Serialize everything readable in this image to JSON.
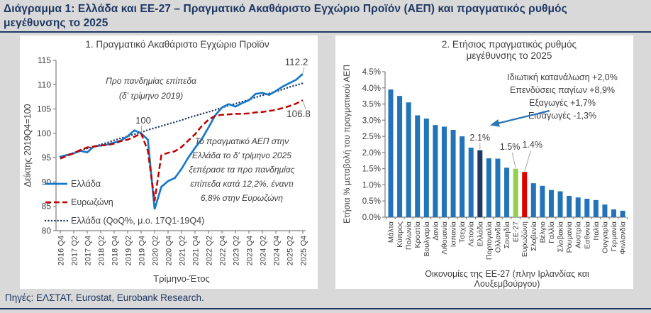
{
  "page": {
    "title_lines": [
      "Διάγραμμα 1: Ελλάδα και ΕΕ-27 – Πραγματικό Ακαθάριστο Εγχώριο Προϊόν (ΑΕΠ) και πραγματικός ρυθμός",
      "μεγέθυνσης το 2025"
    ],
    "sources": "Πηγές: ΕΛΣΤΑΤ, Eurostat, Eurobank Research."
  },
  "colors": {
    "navy": "#1F3864",
    "page_bg": "#D9D9D9",
    "panel_bg": "#FFFFFF",
    "text_dark": "#3F3F3F",
    "axis_gray": "#7F7F7F",
    "leader_gray": "#A6A6A6",
    "line_blue": "#1878C8",
    "line_red": "#C00000",
    "trend_navy": "#1F3864",
    "bar_blue": "#2273B8",
    "bar_navy": "#1F3864",
    "bar_green": "#92D050",
    "bar_red": "#DF0000",
    "arrow_blue": "#2E75B6"
  },
  "chart_data": [
    {
      "type": "line",
      "title": "1. Πραγματικό Ακαθάριστο Εγχώριο Προϊόν",
      "xlabel": "Τρίμηνο-Έτος",
      "ylabel": "Δείκτης 2019Q4=100",
      "ylim": [
        80,
        115
      ],
      "ytick_step": 5,
      "grid": false,
      "legend_position": "inside-bottom-left",
      "x_ticks": [
        "2016 Q4",
        "2017 Q2",
        "2017 Q4",
        "2018 Q2",
        "2018 Q4",
        "2019 Q2",
        "2019 Q4",
        "2020 Q2",
        "2020 Q4",
        "2021 Q2",
        "2021 Q4",
        "2022 Q2",
        "2022 Q4",
        "2023 Q2",
        "2023 Q4",
        "2024 Q2",
        "2024 Q4",
        "2025 Q2",
        "2025 Q4"
      ],
      "series": [
        {
          "name": "Ελλάδα",
          "style": "solid",
          "color_key": "line_blue",
          "values": [
            95.2,
            95.5,
            95.9,
            96.4,
            96.1,
            97.3,
            97.5,
            97.7,
            98.1,
            98.5,
            99.4,
            100.6,
            100.0,
            98.7,
            84.4,
            89.0,
            90.2,
            90.8,
            92.7,
            95.0,
            97.0,
            98.8,
            101.2,
            103.7,
            105.3,
            106.0,
            105.5,
            106.2,
            106.8,
            108.1,
            108.3,
            107.9,
            108.7,
            109.6,
            110.3,
            111.0,
            112.2
          ]
        },
        {
          "name": "Ευρωζώνη",
          "style": "dashed",
          "color_key": "line_red",
          "values": [
            94.8,
            95.4,
            95.9,
            96.6,
            97.1,
            97.3,
            97.5,
            97.6,
            97.9,
            98.4,
            98.7,
            99.3,
            100.0,
            96.4,
            86.1,
            95.5,
            96.0,
            96.3,
            97.2,
            98.5,
            99.8,
            101.5,
            102.8,
            103.6,
            103.8,
            103.9,
            104.0,
            104.0,
            104.1,
            104.3,
            104.4,
            104.6,
            104.8,
            105.2,
            105.6,
            106.1,
            106.8
          ]
        },
        {
          "name": "Ελλάδα (QoQ%, μ.ο. 17Q1-19Q4)",
          "style": "dotted",
          "color_key": "trend_navy",
          "values": [
            95.2,
            95.6,
            96.0,
            96.5,
            96.9,
            97.3,
            97.7,
            98.1,
            98.6,
            99.0,
            99.4,
            99.8,
            100.2,
            100.7,
            101.1,
            101.5,
            101.9,
            102.3,
            102.7,
            103.2,
            103.6,
            104.0,
            104.4,
            104.8,
            105.3,
            105.7,
            106.1,
            106.5,
            106.9,
            107.4,
            107.8,
            108.2,
            108.6,
            109.0,
            109.5,
            109.9,
            110.3
          ]
        }
      ],
      "annotations": {
        "pre_pandemic": [
          "Προ πανδημίας επίπεδα",
          "(δ' τρίμηνο 2019)"
        ],
        "level_marker": "100",
        "end_label_greece": "112.2",
        "end_label_eurozone": "106.8",
        "textbox": [
          "Το πραγματικό ΑΕΠ στην",
          "Ελλάδα το δ' τρίμηνο 2025",
          "ξεπέρασε τα προ πανδημίας",
          "επίπεδα κατά 12,2%, έναντι",
          "6,8% στην Ευρωζώνη"
        ]
      }
    },
    {
      "type": "bar",
      "title_lines": [
        "2. Ετήσιος πραγματικός ρυθμός",
        "μεγέθυνσης  το 2025"
      ],
      "xlabel_lines": [
        "Οικονομίες της ΕΕ-27 (πλην Ιρλανδίας και",
        "Λουξεμβούργου)"
      ],
      "ylabel": "Ετήσια % μεταβολή του πραγματικού ΑΕΠ",
      "ylim": [
        0,
        4.5
      ],
      "ytick_step": 0.5,
      "grid": false,
      "categories": [
        "Μάλτα",
        "Κύπρος",
        "Πολωνία",
        "Κροατία",
        "Βουλγαρία",
        "Δανία",
        "Λιθουανία",
        "Ισπανία",
        "Τσεχία",
        "Λετονία",
        "Ελλάδα",
        "Πορτογαλία",
        "Ολλανδία",
        "Σουηδία",
        "ΕΕ-27",
        "Ευρωζώνη",
        "Σλοβενία",
        "Βέλγιο",
        "Γαλλία",
        "Σλοβακία",
        "Ρουμανία",
        "Αυστρία",
        "Εσθονία",
        "Ιταλία",
        "Ουγγαρία",
        "Γερμανία",
        "Φινλανδία"
      ],
      "values": [
        3.95,
        3.75,
        3.55,
        3.15,
        3.05,
        2.85,
        2.8,
        2.7,
        2.5,
        2.15,
        2.07,
        1.82,
        1.81,
        1.53,
        1.5,
        1.4,
        1.05,
        0.97,
        0.84,
        0.8,
        0.66,
        0.61,
        0.57,
        0.53,
        0.39,
        0.24,
        0.2
      ],
      "highlight": {
        "Ελλάδα": "bar_navy",
        "ΕΕ-27": "bar_green",
        "Ευρωζώνη": "bar_red"
      },
      "bar_labels": [
        {
          "category": "Ελλάδα",
          "text": "2.1%"
        },
        {
          "category": "ΕΕ-27",
          "text": "1.5%"
        },
        {
          "category": "Ευρωζώνη",
          "text": "1.4%"
        }
      ],
      "annotations": {
        "components": [
          "Ιδιωτική κατανάλωση +2,0%",
          "Επενδύσεις παγίων +8,9%",
          "Εξαγωγές +1,7%",
          "Εισαγωγές -1,3%"
        ]
      }
    }
  ]
}
